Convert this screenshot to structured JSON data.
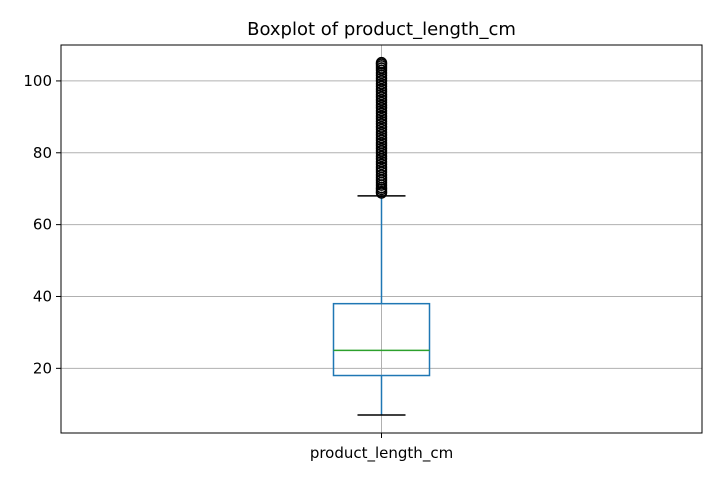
{
  "chart_data": {
    "type": "boxplot",
    "title": "Boxplot of product_length_cm",
    "xlabel": "",
    "ylabel": "",
    "categories": [
      "product_length_cm"
    ],
    "ylim": [
      2,
      110
    ],
    "yticks": [
      20,
      40,
      60,
      80,
      100
    ],
    "grid": true,
    "box": {
      "whisker_low": 7,
      "q1": 18,
      "median": 25,
      "q3": 38,
      "whisker_high": 68
    },
    "outliers": [
      68.8,
      69.2,
      69.8,
      70.3,
      71,
      71.7,
      72.4,
      73.1,
      73.8,
      74.6,
      75.3,
      76,
      76.8,
      77.5,
      78.3,
      79,
      79.8,
      80.5,
      81.2,
      82,
      82.7,
      83.5,
      84.2,
      85,
      85.7,
      86.5,
      87.2,
      88,
      88.7,
      89.5,
      90.2,
      91,
      91.7,
      92.5,
      93.2,
      94,
      94.7,
      95.5,
      96.2,
      97,
      97.7,
      98.5,
      99.2,
      100,
      100.7,
      101.5,
      102.2,
      103,
      103.6,
      104.2,
      104.7,
      105.1
    ],
    "colors": {
      "box": "#1f77b4",
      "median": "#2ca02c",
      "whisker_cap": "#000000",
      "grid": "#b0b0b0",
      "outlier_edge": "#000000"
    }
  }
}
